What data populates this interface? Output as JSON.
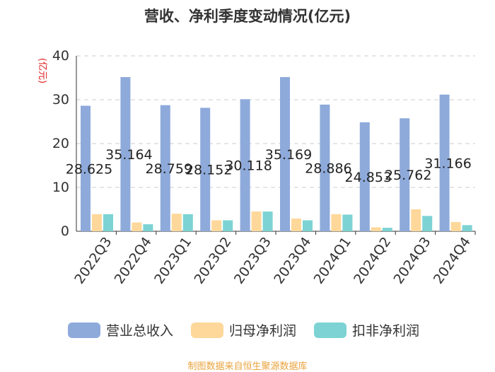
{
  "chart_data": {
    "type": "bar",
    "title": "营收、净利季度变动情况(亿元)",
    "ylabel": "(亿元)",
    "xlabel": "",
    "ylim": [
      0,
      40
    ],
    "yticks": [
      0,
      10,
      20,
      30,
      40
    ],
    "grid": true,
    "legend_position": "bottom",
    "categories": [
      "2022Q3",
      "2022Q4",
      "2023Q1",
      "2023Q2",
      "2023Q3",
      "2023Q4",
      "2024Q1",
      "2024Q2",
      "2024Q3",
      "2024Q4"
    ],
    "series": [
      {
        "name": "营业总收入",
        "color": "#8eaadb",
        "values": [
          28.625,
          35.164,
          28.759,
          28.152,
          30.118,
          35.169,
          28.886,
          24.853,
          25.762,
          31.166
        ],
        "labels": [
          "28.625",
          "35.164",
          "28.759",
          "28.152",
          "30.118",
          "35.169",
          "28.886",
          "24.853",
          "25.762",
          "31.166"
        ]
      },
      {
        "name": "归母净利润",
        "color": "#fdd89a",
        "values": [
          3.9,
          2.0,
          4.0,
          2.5,
          4.5,
          2.9,
          3.9,
          0.9,
          5.0,
          2.1
        ]
      },
      {
        "name": "扣非净利润",
        "color": "#7dd3d3",
        "values": [
          3.9,
          1.6,
          3.9,
          2.5,
          4.5,
          2.5,
          3.8,
          0.8,
          3.5,
          1.4
        ]
      }
    ]
  },
  "footer": "制图数据来自恒生聚源数据库"
}
